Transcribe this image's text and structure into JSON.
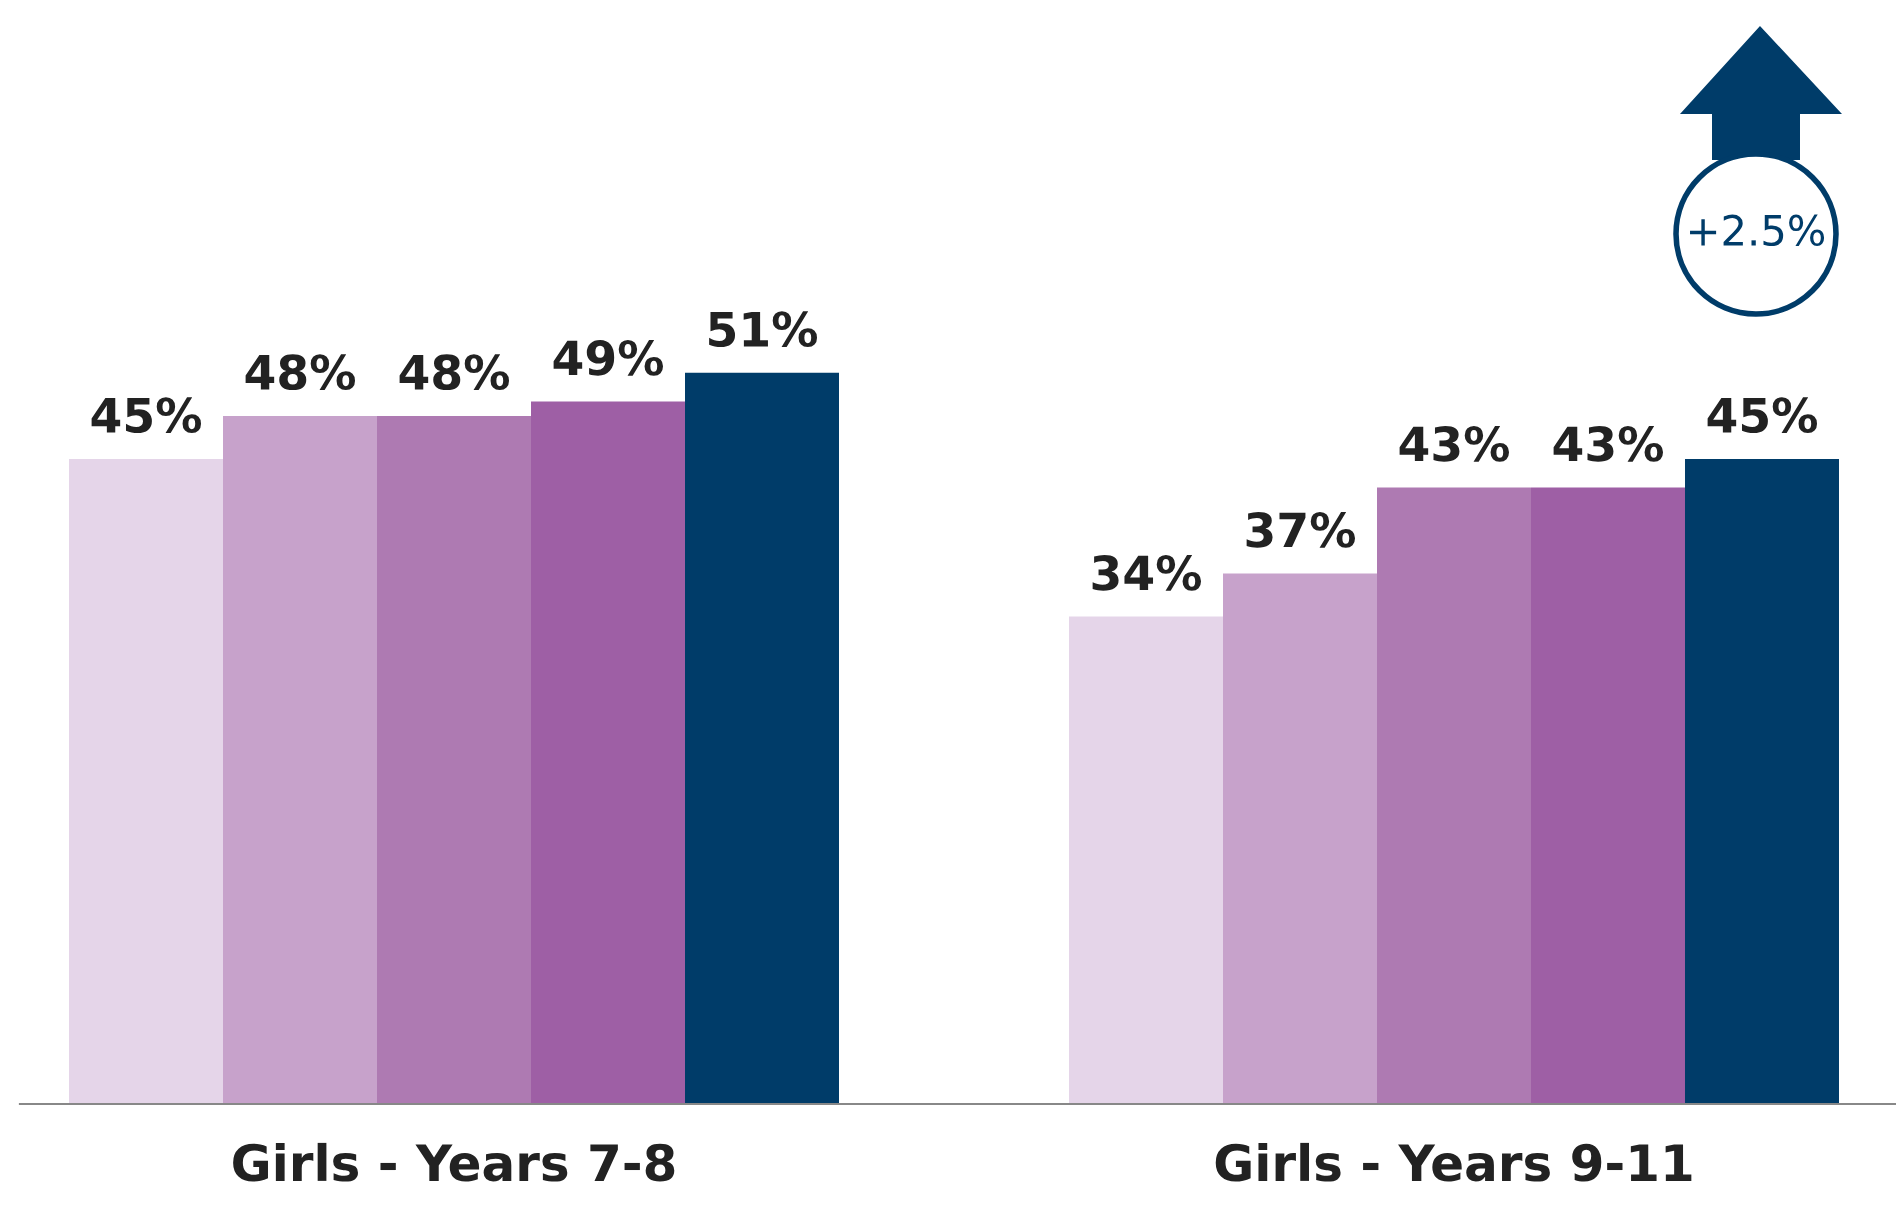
{
  "chart_data": {
    "type": "bar",
    "categories": [
      "Girls - Years 7-8",
      "Girls - Years 9-11"
    ],
    "series": [
      {
        "color": "#e5d5e9",
        "values": [
          45,
          34
        ],
        "value_labels": [
          "45%",
          "34%"
        ]
      },
      {
        "color": "#c7a2cb",
        "values": [
          48,
          37
        ],
        "value_labels": [
          "48%",
          "37%"
        ]
      },
      {
        "color": "#ae7ab2",
        "values": [
          48,
          43
        ],
        "value_labels": [
          "48%",
          "43%"
        ]
      },
      {
        "color": "#9e5fa5",
        "values": [
          49,
          43
        ],
        "value_labels": [
          "49%",
          "43%"
        ]
      },
      {
        "color": "#003c69",
        "values": [
          51,
          45
        ],
        "value_labels": [
          "51%",
          "45%"
        ]
      }
    ],
    "tick_labels": "x",
    "grid": false,
    "legend": false,
    "annotations": [
      "+2.5%"
    ]
  }
}
